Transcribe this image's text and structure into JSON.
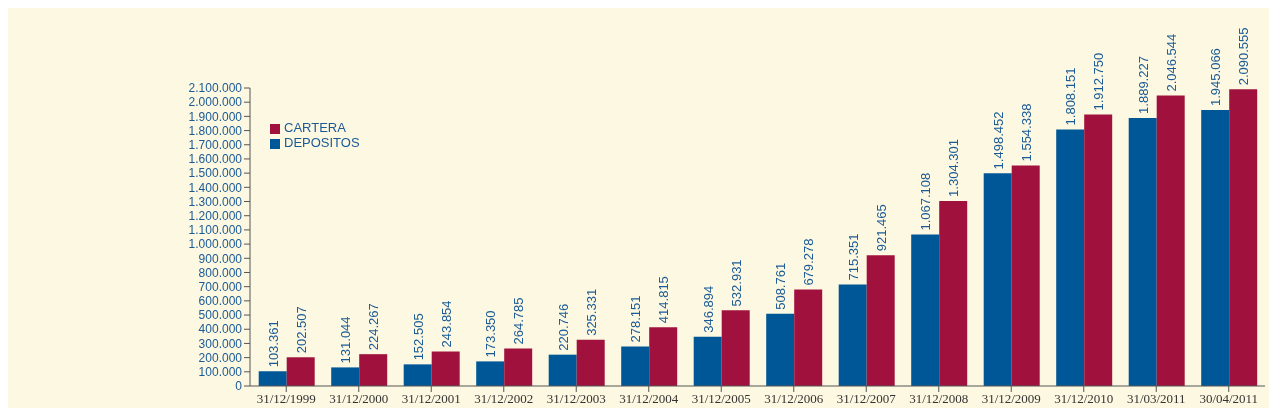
{
  "chart_data": {
    "type": "bar",
    "categories": [
      "31/12/1999",
      "31/12/2000",
      "31/12/2001",
      "31/12/2002",
      "31/12/2003",
      "31/12/2004",
      "31/12/2005",
      "31/12/2006",
      "31/12/2007",
      "31/12/2008",
      "31/12/2009",
      "31/12/2010",
      "31/03/2011",
      "30/04/2011"
    ],
    "series": [
      {
        "name": "DEPOSITOS",
        "color": "#005797",
        "values": [
          103361,
          131044,
          152505,
          173350,
          220746,
          278151,
          346894,
          508761,
          715351,
          1067108,
          1498452,
          1808151,
          1889227,
          1945066
        ],
        "value_labels": [
          "103.361",
          "131.044",
          "152.505",
          "173.350",
          "220.746",
          "278.151",
          "346.894",
          "508.761",
          "715.351",
          "1.067.108",
          "1.498.452",
          "1.808.151",
          "1.889.227",
          "1.945.066"
        ]
      },
      {
        "name": "CARTERA",
        "color": "#a0123d",
        "values": [
          202507,
          224267,
          243854,
          264785,
          325331,
          414815,
          532931,
          679278,
          921465,
          1304301,
          1554338,
          1912750,
          2046544,
          2090555
        ],
        "value_labels": [
          "202.507",
          "224.267",
          "243.854",
          "264.785",
          "325.331",
          "414.815",
          "532.931",
          "679.278",
          "921.465",
          "1.304.301",
          "1.554.338",
          "1.912.750",
          "2.046.544",
          "2.090.555"
        ]
      }
    ],
    "ylim": [
      0,
      2100000
    ],
    "yticks": [
      0,
      {
        "value": 100000,
        "label": "100.000"
      },
      {
        "value": 200000,
        "label": "200.000"
      },
      {
        "value": 300000,
        "label": "300.000"
      },
      {
        "value": 400000,
        "label": "400.000"
      },
      {
        "value": 500000,
        "label": "500.000"
      },
      {
        "value": 600000,
        "label": "600.000"
      },
      {
        "value": 700000,
        "label": "700.000"
      },
      {
        "value": 800000,
        "label": "800.000"
      },
      {
        "value": 900000,
        "label": "900.000"
      },
      {
        "value": 1000000,
        "label": "1.000.000"
      },
      {
        "value": 1100000,
        "label": "1.100.000"
      },
      {
        "value": 1200000,
        "label": "1.200.000"
      },
      {
        "value": 1300000,
        "label": "1.300.000"
      },
      {
        "value": 1400000,
        "label": "1.400.000"
      },
      {
        "value": 1500000,
        "label": "1.500.000"
      },
      {
        "value": 1600000,
        "label": "1.600.000"
      },
      {
        "value": 1700000,
        "label": "1.700.000"
      },
      {
        "value": 1800000,
        "label": "1.800.000"
      },
      {
        "value": 1900000,
        "label": "1.900.000"
      },
      {
        "value": 2000000,
        "label": "2.000.000"
      },
      {
        "value": 2100000,
        "label": "2.100.000"
      }
    ],
    "grid": false,
    "legend": "top left"
  }
}
